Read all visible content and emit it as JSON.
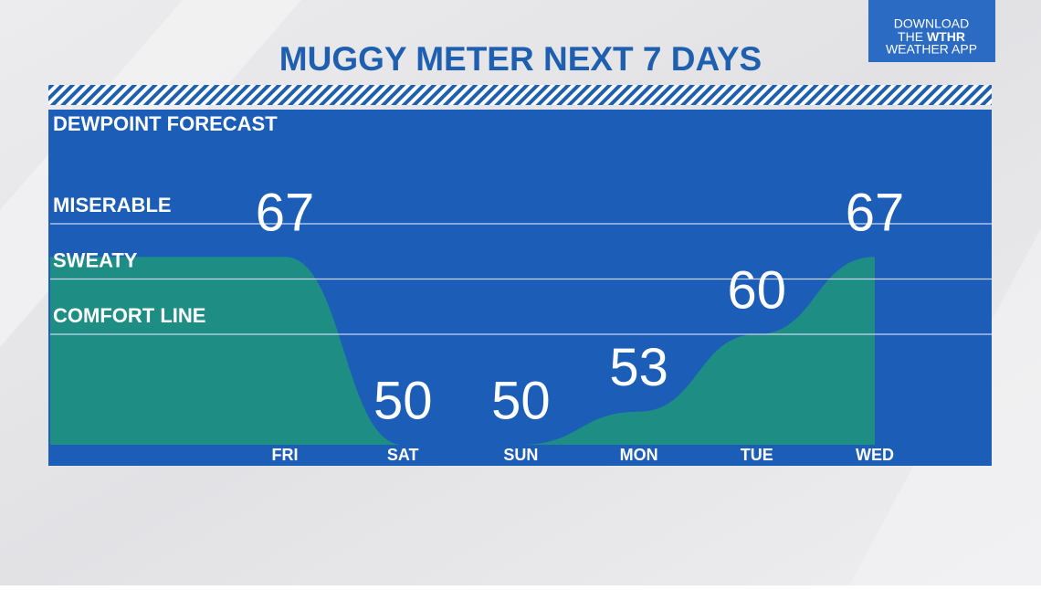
{
  "chart_data": {
    "type": "area",
    "title": "MUGGY METER NEXT 7 DAYS",
    "subtitle": "DEWPOINT FORECAST",
    "categories": [
      "FRI",
      "SAT",
      "SUN",
      "MON",
      "TUE",
      "WED"
    ],
    "values": [
      67,
      50,
      50,
      53,
      60,
      67
    ],
    "color": "#1e8d84",
    "ylim": [
      50,
      80
    ],
    "levels": [
      {
        "label": "MISERABLE",
        "value": 70
      },
      {
        "label": "SWEATY",
        "value": 65
      },
      {
        "label": "COMFORT LINE",
        "value": 60
      }
    ]
  },
  "badge": {
    "line1": "DOWNLOAD",
    "line2a": "THE",
    "line2b": "WTHR",
    "line3": "WEATHER APP"
  }
}
